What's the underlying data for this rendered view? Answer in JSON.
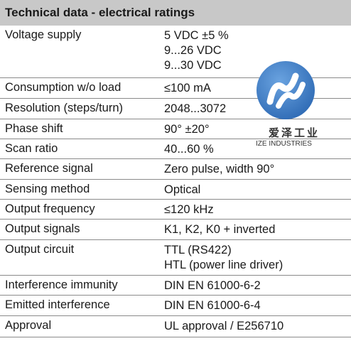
{
  "header": {
    "title": "Technical data - electrical ratings"
  },
  "rows": [
    {
      "param": "Voltage supply",
      "values": [
        "5 VDC ±5 %",
        "9...26 VDC",
        "9...30 VDC"
      ]
    },
    {
      "param": "Consumption w/o load",
      "values": [
        "≤100 mA"
      ]
    },
    {
      "param": "Resolution (steps/turn)",
      "values": [
        "2048...3072"
      ]
    },
    {
      "param": "Phase shift",
      "values": [
        "90° ±20°"
      ]
    },
    {
      "param": "Scan ratio",
      "values": [
        "40...60 %"
      ]
    },
    {
      "param": "Reference signal",
      "values": [
        "Zero pulse, width 90°"
      ]
    },
    {
      "param": "Sensing method",
      "values": [
        "Optical"
      ]
    },
    {
      "param": "Output frequency",
      "values": [
        "≤120 kHz"
      ]
    },
    {
      "param": "Output signals",
      "values": [
        "K1, K2, K0 + inverted"
      ]
    },
    {
      "param": "Output circuit",
      "values": [
        "TTL (RS422)",
        "HTL (power line driver)"
      ]
    },
    {
      "param": "Interference immunity",
      "values": [
        "DIN EN 61000-6-2"
      ]
    },
    {
      "param": "Emitted interference",
      "values": [
        "DIN EN 61000-6-4"
      ]
    },
    {
      "param": "Approval",
      "values": [
        "UL approval / E256710"
      ]
    }
  ],
  "watermark": {
    "chinese": "爱泽工业",
    "english": "IZE INDUSTRIES",
    "colors": {
      "blue": "#3a78c0",
      "white": "#ffffff"
    }
  }
}
